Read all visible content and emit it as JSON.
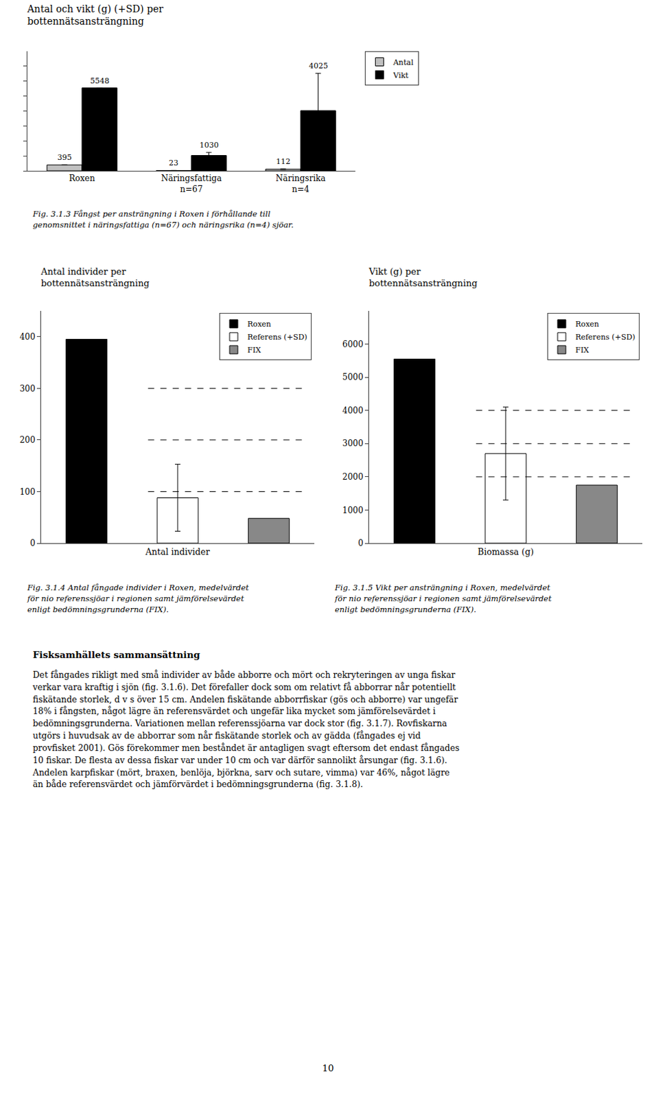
{
  "chart_data": [
    {
      "type": "bar",
      "title": "Antal och vikt (g) (+SD) per\nbottennätsansträngning",
      "categories": [
        "Roxen",
        "Näringsfattiga\nn=67",
        "Näringsrika\nn=4"
      ],
      "series": [
        {
          "name": "Antal",
          "color": "#c0c0c0",
          "values": [
            395,
            23,
            112
          ],
          "errors": [
            0,
            5,
            20
          ]
        },
        {
          "name": "Vikt",
          "color": "#000000",
          "values": [
            5548,
            1030,
            4025
          ],
          "errors": [
            0,
            200,
            2500
          ]
        }
      ],
      "ylim": [
        0,
        8000
      ],
      "yticks": [
        0,
        1000,
        2000,
        3000,
        4000,
        5000,
        6000,
        7000
      ],
      "grid": false,
      "legend": "upper right",
      "data_labels": true,
      "tick_labels": "x",
      "annotations": [
        "Fig. 3.1.3  Fångst per ansträngning i Roxen i förhållande till\ngenomsnittet i näringsfattiga (n=67) och näringsrika (n=4) sjöar."
      ]
    },
    {
      "type": "bar",
      "title": "Antal individer per\nbottennätsansträngning",
      "categories": [
        null,
        null,
        null
      ],
      "series": [
        {
          "name": "Roxen",
          "color": "#000000",
          "values": [
            395,
            null,
            null
          ]
        },
        {
          "name": "Referens (+SD)",
          "color": "#ffffff",
          "values": [
            null,
            88,
            null
          ],
          "errors": [
            null,
            65,
            null
          ]
        },
        {
          "name": "FIX",
          "color": "#888888",
          "values": [
            null,
            null,
            48
          ]
        }
      ],
      "reference_lines": [
        100,
        200,
        300
      ],
      "xlabel": "Antal individer",
      "ylim": [
        0,
        450
      ],
      "yticks": [
        0,
        100,
        200,
        300,
        400
      ],
      "grid": false,
      "legend": "upper right",
      "tick_labels": "y",
      "annotations": [
        "Fig. 3.1.4  Antal fångade individer i Roxen, medelvärdet\nför nio referenssjöar i regionen samt jämförelsevärdet\nenligt bedömningsgrunderna (FIX)."
      ]
    },
    {
      "type": "bar",
      "title": "Vikt (g) per\nbottennätsansträngning",
      "categories": [
        null,
        null,
        null
      ],
      "series": [
        {
          "name": "Roxen",
          "color": "#000000",
          "values": [
            5548,
            null,
            null
          ]
        },
        {
          "name": "Referens (+SD)",
          "color": "#ffffff",
          "values": [
            null,
            2700,
            null
          ],
          "errors": [
            null,
            1400,
            null
          ]
        },
        {
          "name": "FIX",
          "color": "#888888",
          "values": [
            null,
            null,
            1750
          ]
        }
      ],
      "reference_lines": [
        2000,
        3000,
        4000
      ],
      "xlabel": "Biomassa (g)",
      "ylim": [
        0,
        7000
      ],
      "yticks": [
        0,
        1000,
        2000,
        3000,
        4000,
        5000,
        6000
      ],
      "grid": false,
      "legend": "upper right",
      "tick_labels": "y",
      "annotations": [
        "Fig. 3.1.5  Vikt per ansträngning i Roxen, medelvärdet\nför nio referenssjöar i regionen samt jämförelsevärdet\nenligt bedömningsgrunderna (FIX)."
      ]
    }
  ],
  "annotations": [
    "Fisksamhällets sammansättning",
    "Det fångades rikligt med små individer av både abborre och mört och rekryteringen av unga fiskar\nverkar vara kraftig i sjön (fig. 3.1.6). Det förefaller dock som om relativt få abborrar når potentiellt\nfiskätande storlek, d v s över 15 cm. Andelen fiskätande abborrfiskar (gös och abborre) var ungefär\n18% i fångsten, något lägre än referensvärdet och ungefär lika mycket som jämförelsevärdet i\nbedömningsgrunderna. Variationen mellan referenssjöarna var dock stor (fig. 3.1.7). Rovfiskarna\nutgörs i huvudsak av de abborrar som når fiskätande storlek och av gädda (fångades ej vid\nprovfisket 2001). Gös förekommer men beståndet är antagligen svagt eftersom det endast fångades\n10 fiskar. De flesta av dessa fiskar var under 10 cm och var därför sannolikt årsungar (fig. 3.1.6).\nAndelen karpfiskar (mört, braxen, benlöja, björkna, sarv och sutare, vimma) var 46%, något lägre\nän både referensvärdet och jämförvärdet i bedömningsgrunderna (fig. 3.1.8).",
    "10"
  ]
}
